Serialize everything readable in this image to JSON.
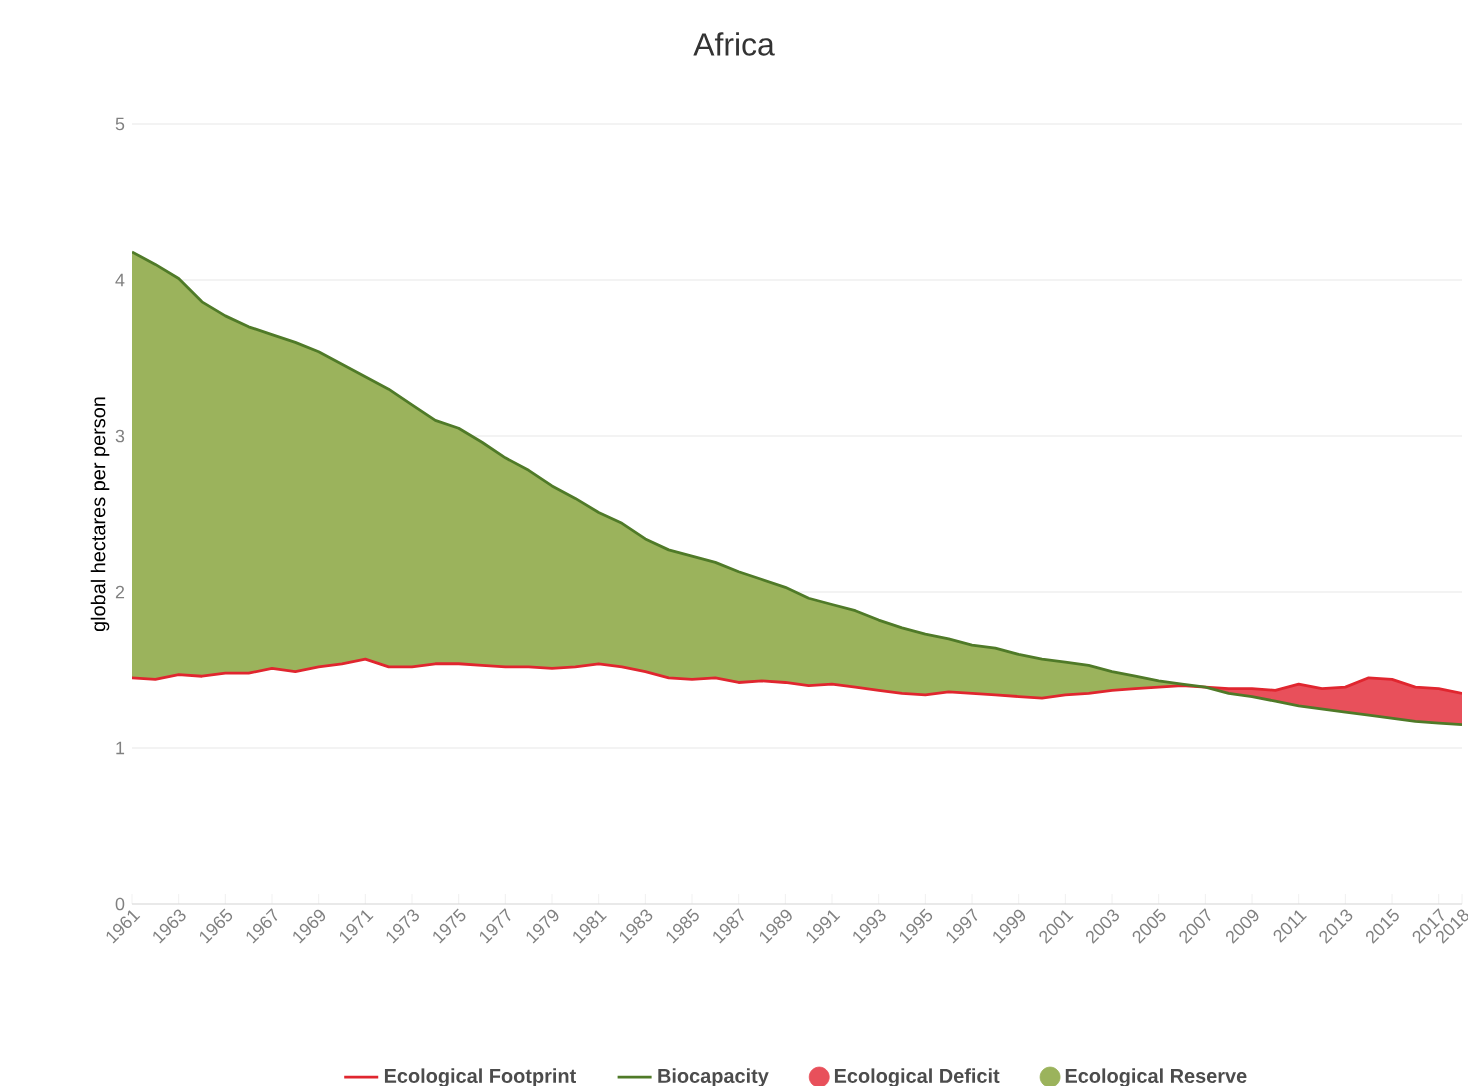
{
  "chart_data": {
    "type": "line",
    "title": "Africa",
    "ylabel": "global hectares per person",
    "x": [
      1961,
      1962,
      1963,
      1964,
      1965,
      1966,
      1967,
      1968,
      1969,
      1970,
      1971,
      1972,
      1973,
      1974,
      1975,
      1976,
      1977,
      1978,
      1979,
      1980,
      1981,
      1982,
      1983,
      1984,
      1985,
      1986,
      1987,
      1988,
      1989,
      1990,
      1991,
      1992,
      1993,
      1994,
      1995,
      1996,
      1997,
      1998,
      1999,
      2000,
      2001,
      2002,
      2003,
      2004,
      2005,
      2006,
      2007,
      2008,
      2009,
      2010,
      2011,
      2012,
      2013,
      2014,
      2015,
      2016,
      2017,
      2018
    ],
    "series": [
      {
        "name": "Ecological Footprint",
        "color": "#e0262f",
        "values": [
          1.45,
          1.44,
          1.47,
          1.46,
          1.48,
          1.48,
          1.51,
          1.49,
          1.52,
          1.54,
          1.57,
          1.52,
          1.52,
          1.54,
          1.54,
          1.53,
          1.52,
          1.52,
          1.51,
          1.52,
          1.54,
          1.52,
          1.49,
          1.45,
          1.44,
          1.45,
          1.42,
          1.43,
          1.42,
          1.4,
          1.41,
          1.39,
          1.37,
          1.35,
          1.34,
          1.36,
          1.35,
          1.34,
          1.33,
          1.32,
          1.34,
          1.35,
          1.37,
          1.38,
          1.39,
          1.4,
          1.39,
          1.38,
          1.38,
          1.37,
          1.41,
          1.38,
          1.39,
          1.45,
          1.44,
          1.39,
          1.38,
          1.35
        ]
      },
      {
        "name": "Biocapacity",
        "color": "#4f7a28",
        "values": [
          4.18,
          4.1,
          4.01,
          3.86,
          3.77,
          3.7,
          3.65,
          3.6,
          3.54,
          3.46,
          3.38,
          3.3,
          3.2,
          3.1,
          3.05,
          2.96,
          2.86,
          2.78,
          2.68,
          2.6,
          2.51,
          2.44,
          2.34,
          2.27,
          2.23,
          2.19,
          2.13,
          2.08,
          2.03,
          1.96,
          1.92,
          1.88,
          1.82,
          1.77,
          1.73,
          1.7,
          1.66,
          1.64,
          1.6,
          1.57,
          1.55,
          1.53,
          1.49,
          1.46,
          1.43,
          1.41,
          1.39,
          1.35,
          1.33,
          1.3,
          1.27,
          1.25,
          1.23,
          1.21,
          1.19,
          1.17,
          1.16,
          1.15
        ]
      },
      {
        "name": "Ecological Deficit",
        "color": "#e8505b",
        "x": [
          2007,
          2008,
          2009,
          2010,
          2011,
          2012,
          2013,
          2014,
          2015,
          2016,
          2017,
          2018
        ],
        "values": [
          null,
          null,
          null,
          null,
          null,
          null,
          null,
          null,
          null,
          null,
          null,
          null
        ],
        "upper": [
          1.39,
          1.38,
          1.38,
          1.37,
          1.41,
          1.38,
          1.39,
          1.45,
          1.44,
          1.39,
          1.38,
          1.35
        ],
        "lower": [
          1.39,
          1.35,
          1.33,
          1.3,
          1.27,
          1.25,
          1.23,
          1.21,
          1.19,
          1.17,
          1.16,
          1.15
        ]
      },
      {
        "name": "Ecological Reserve",
        "color": "#9bb35c",
        "x": [
          1961,
          1962,
          1963,
          1964,
          1965,
          1966,
          1967,
          1968,
          1969,
          1970,
          1971,
          1972,
          1973,
          1974,
          1975,
          1976,
          1977,
          1978,
          1979,
          1980,
          1981,
          1982,
          1983,
          1984,
          1985,
          1986,
          1987,
          1988,
          1989,
          1990,
          1991,
          1992,
          1993,
          1994,
          1995,
          1996,
          1997,
          1998,
          1999,
          2000,
          2001,
          2002,
          2003,
          2004,
          2005,
          2006,
          2007
        ],
        "values": [
          null,
          null,
          null,
          null,
          null,
          null,
          null,
          null,
          null,
          null,
          null,
          null,
          null,
          null,
          null,
          null,
          null,
          null,
          null,
          null,
          null,
          null,
          null,
          null,
          null,
          null,
          null,
          null,
          null,
          null,
          null,
          null,
          null,
          null,
          null,
          null,
          null,
          null,
          null,
          null,
          null,
          null,
          null,
          null,
          null,
          null,
          null
        ],
        "upper": [
          4.18,
          4.1,
          4.01,
          3.86,
          3.77,
          3.7,
          3.65,
          3.6,
          3.54,
          3.46,
          3.38,
          3.3,
          3.2,
          3.1,
          3.05,
          2.96,
          2.86,
          2.78,
          2.68,
          2.6,
          2.51,
          2.44,
          2.34,
          2.27,
          2.23,
          2.19,
          2.13,
          2.08,
          2.03,
          1.96,
          1.92,
          1.88,
          1.82,
          1.77,
          1.73,
          1.7,
          1.66,
          1.64,
          1.6,
          1.57,
          1.55,
          1.53,
          1.49,
          1.46,
          1.43,
          1.41,
          1.39
        ],
        "lower": [
          1.45,
          1.44,
          1.47,
          1.46,
          1.48,
          1.48,
          1.51,
          1.49,
          1.52,
          1.54,
          1.57,
          1.52,
          1.52,
          1.54,
          1.54,
          1.53,
          1.52,
          1.52,
          1.51,
          1.52,
          1.54,
          1.52,
          1.49,
          1.45,
          1.44,
          1.45,
          1.42,
          1.43,
          1.42,
          1.4,
          1.41,
          1.39,
          1.37,
          1.35,
          1.34,
          1.36,
          1.35,
          1.34,
          1.33,
          1.32,
          1.34,
          1.35,
          1.37,
          1.38,
          1.39,
          1.4,
          1.39
        ]
      }
    ],
    "xlim": [
      1961,
      2018
    ],
    "xticks": [
      1961,
      1963,
      1965,
      1967,
      1969,
      1971,
      1973,
      1975,
      1977,
      1979,
      1981,
      1983,
      1985,
      1987,
      1989,
      1991,
      1993,
      1995,
      1997,
      1999,
      2001,
      2003,
      2005,
      2007,
      2009,
      2011,
      2013,
      2015,
      2017,
      2018
    ],
    "ylim": [
      0,
      5
    ],
    "yticks": [
      0,
      1,
      2,
      3,
      4,
      5
    ],
    "grid": "y",
    "legend": "bottom",
    "marker": "none",
    "line_style": "solid"
  }
}
